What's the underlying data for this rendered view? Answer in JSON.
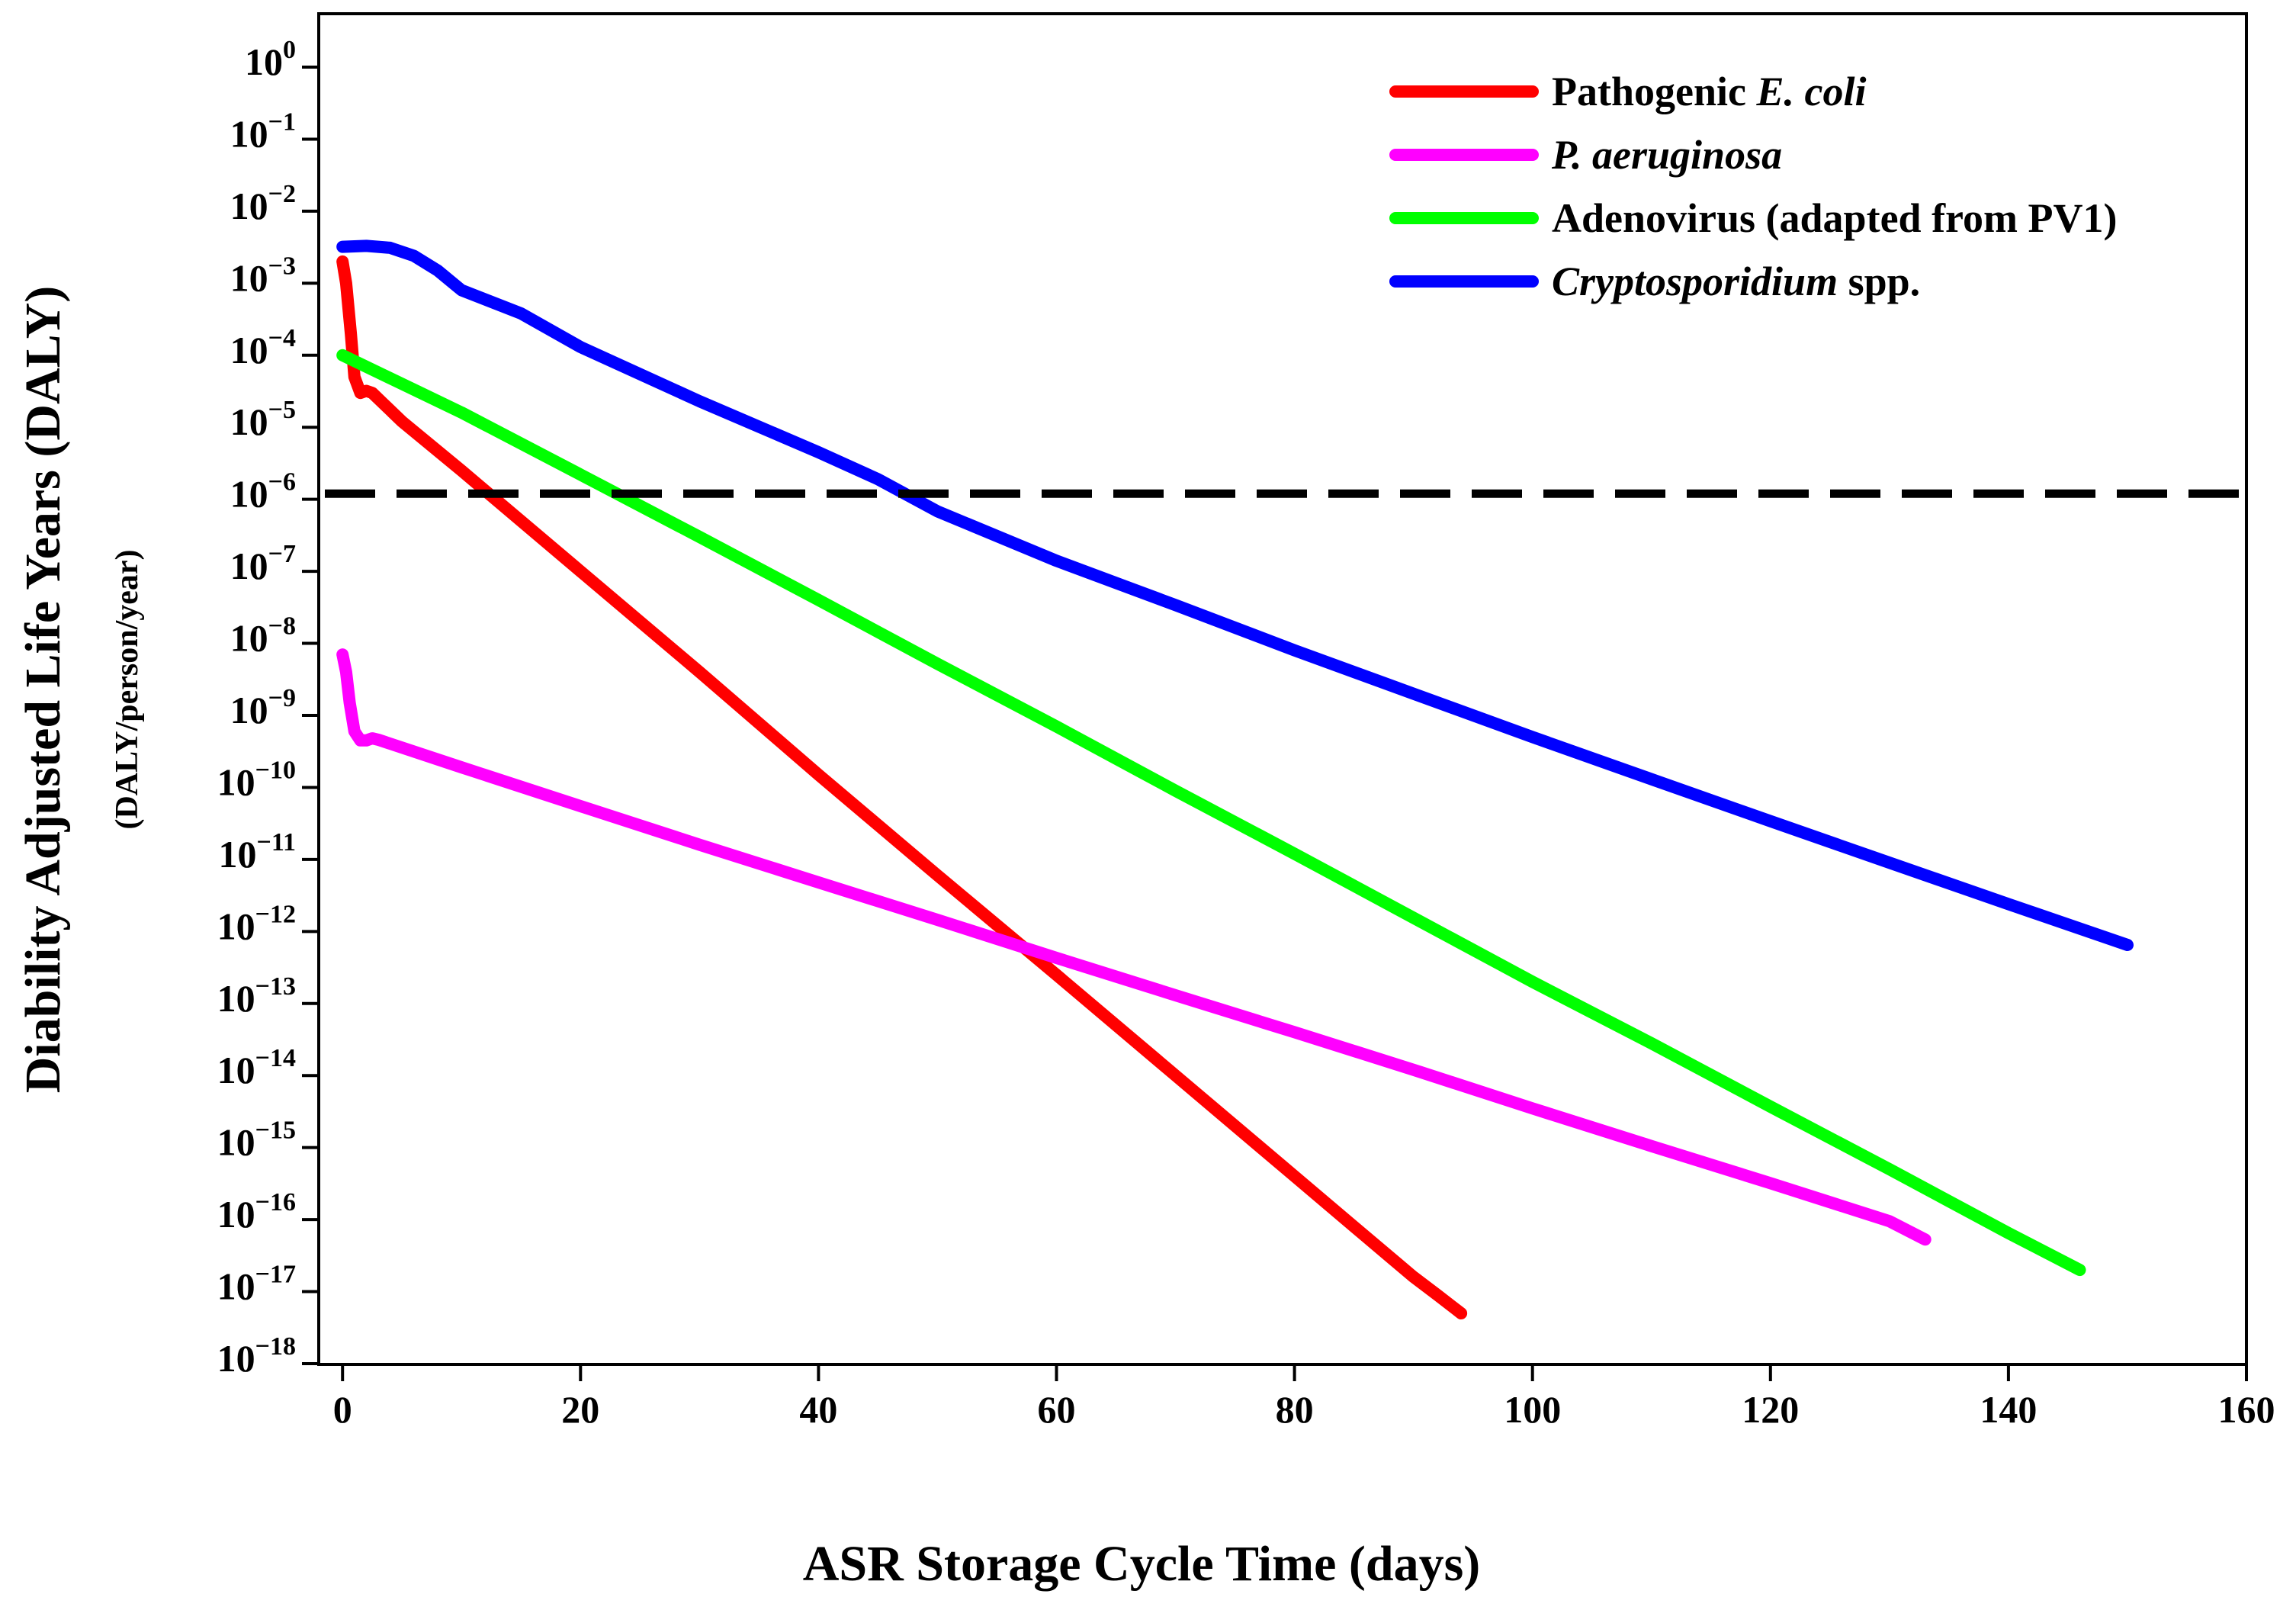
{
  "chart_data": {
    "type": "line",
    "xlabel": "ASR Storage Cycle Time (days)",
    "ylabel": "Diability Adjusted Life Years (DALY)",
    "ylabel_sub": "(DALY/person/year)",
    "xlim": [
      -2,
      160
    ],
    "ylim_log10": [
      -18,
      0
    ],
    "y_scale": "log",
    "x_ticks": [
      0,
      20,
      40,
      60,
      80,
      100,
      120,
      140,
      160
    ],
    "y_tick_exponents": [
      0,
      -1,
      -2,
      -3,
      -4,
      -5,
      -6,
      -7,
      -8,
      -9,
      -10,
      -11,
      -12,
      -13,
      -14,
      -15,
      -16,
      -17,
      -18
    ],
    "y_tick_base": "10",
    "threshold": {
      "value": 1.2e-06,
      "style": "dashed",
      "color": "#000000"
    },
    "legend_position": "top-right",
    "series": [
      {
        "name": "Pathogenic E. coli",
        "legend_plain": "Pathogenic ",
        "legend_italic": "E. coli",
        "legend_italic_first": false,
        "color": "#ff0000",
        "points": [
          [
            0,
            0.002
          ],
          [
            0.3,
            0.001
          ],
          [
            0.7,
            0.0002
          ],
          [
            1,
            5e-05
          ],
          [
            1.5,
            3e-05
          ],
          [
            2,
            3.2e-05
          ],
          [
            2.5,
            3e-05
          ],
          [
            5,
            1.2e-05
          ],
          [
            10,
            2.5e-06
          ],
          [
            20,
            1e-07
          ],
          [
            30,
            4e-09
          ],
          [
            40,
            1.5e-10
          ],
          [
            50,
            6e-12
          ],
          [
            60,
            2.5e-13
          ],
          [
            70,
            1e-14
          ],
          [
            80,
            4e-16
          ],
          [
            85,
            8e-17
          ],
          [
            90,
            1.6e-17
          ],
          [
            92,
            9e-18
          ],
          [
            94,
            5e-18
          ]
        ]
      },
      {
        "name": "P. aeruginosa",
        "legend_plain": "",
        "legend_italic": "P. aeruginosa",
        "legend_italic_first": true,
        "color": "#ff00ff",
        "points": [
          [
            0,
            7e-09
          ],
          [
            0.3,
            4e-09
          ],
          [
            0.6,
            1.5e-09
          ],
          [
            1,
            6e-10
          ],
          [
            1.5,
            4.5e-10
          ],
          [
            2,
            4.5e-10
          ],
          [
            2.5,
            4.8e-10
          ],
          [
            3,
            4.6e-10
          ],
          [
            10,
            1.9e-10
          ],
          [
            20,
            5.5e-11
          ],
          [
            30,
            1.6e-11
          ],
          [
            40,
            4.8e-12
          ],
          [
            50,
            1.45e-12
          ],
          [
            60,
            4.3e-13
          ],
          [
            70,
            1.3e-13
          ],
          [
            80,
            4e-14
          ],
          [
            90,
            1.2e-14
          ],
          [
            100,
            3.5e-15
          ],
          [
            110,
            1.05e-15
          ],
          [
            120,
            3.2e-16
          ],
          [
            130,
            9.5e-17
          ],
          [
            133,
            5.3e-17
          ]
        ]
      },
      {
        "name": "Adenovirus (adapted from PV1)",
        "legend_plain": "Adenovirus (adapted from PV1)",
        "legend_italic": "",
        "legend_italic_first": false,
        "color": "#00ff00",
        "points": [
          [
            0,
            0.0001
          ],
          [
            10,
            1.6e-05
          ],
          [
            20,
            2.2e-06
          ],
          [
            30,
            3e-07
          ],
          [
            40,
            4e-08
          ],
          [
            50,
            5.2e-09
          ],
          [
            60,
            7e-10
          ],
          [
            70,
            9e-11
          ],
          [
            80,
            1.2e-11
          ],
          [
            90,
            1.55e-12
          ],
          [
            100,
            2e-13
          ],
          [
            110,
            2.8e-14
          ],
          [
            120,
            3.7e-15
          ],
          [
            130,
            5e-16
          ],
          [
            140,
            6.5e-17
          ],
          [
            146,
            2e-17
          ]
        ]
      },
      {
        "name": "Cryptosporidium spp.",
        "legend_plain": "spp.",
        "legend_italic": "Cryptosporidium",
        "legend_italic_first": true,
        "color": "#0000ff",
        "points": [
          [
            0,
            0.0032
          ],
          [
            2,
            0.0033
          ],
          [
            4,
            0.0031
          ],
          [
            6,
            0.0024
          ],
          [
            8,
            0.0015
          ],
          [
            10,
            0.0008
          ],
          [
            15,
            0.00038
          ],
          [
            20,
            0.00013
          ],
          [
            30,
            2.3e-05
          ],
          [
            40,
            4.5e-06
          ],
          [
            45,
            1.9e-06
          ],
          [
            50,
            6.8e-07
          ],
          [
            60,
            1.4e-07
          ],
          [
            70,
            3.4e-08
          ],
          [
            80,
            8e-09
          ],
          [
            90,
            2e-09
          ],
          [
            100,
            5e-10
          ],
          [
            110,
            1.3e-10
          ],
          [
            120,
            3.4e-11
          ],
          [
            130,
            9e-12
          ],
          [
            140,
            2.4e-12
          ],
          [
            150,
            6.5e-13
          ]
        ]
      }
    ]
  }
}
